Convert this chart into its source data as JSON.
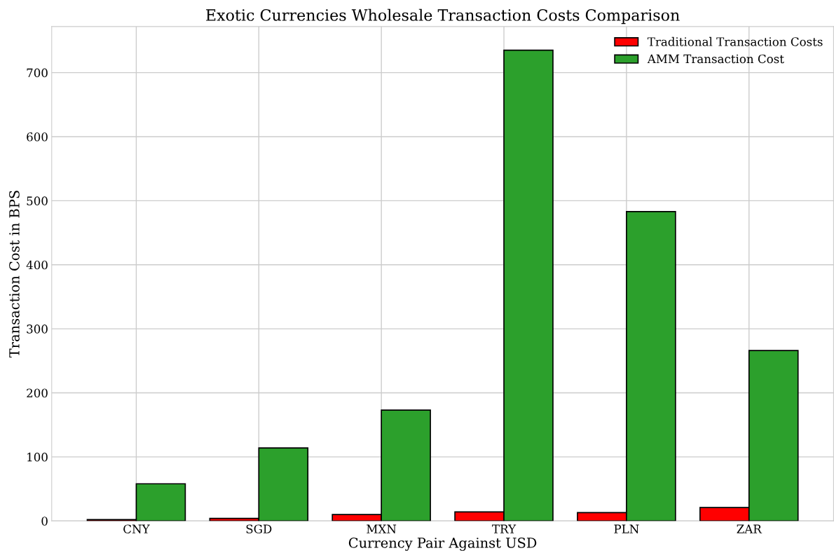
{
  "chart_data": {
    "type": "bar",
    "title": "Exotic Currencies Wholesale Transaction Costs Comparison",
    "xlabel": "Currency Pair Against USD",
    "ylabel": "Transaction Cost in BPS",
    "categories": [
      "CNY",
      "SGD",
      "MXN",
      "TRY",
      "PLN",
      "ZAR"
    ],
    "series": [
      {
        "name": "Traditional Transaction Costs",
        "color": "#ff0000",
        "values": [
          2,
          4,
          10,
          14,
          13,
          21
        ]
      },
      {
        "name": "AMM Transaction Cost",
        "color": "#2ca02c",
        "values": [
          58,
          114,
          173,
          735,
          483,
          266
        ]
      }
    ],
    "ylim": [
      0,
      772
    ],
    "yticks": [
      0,
      100,
      200,
      300,
      400,
      500,
      600,
      700
    ],
    "grid": true,
    "legend": "top right"
  }
}
